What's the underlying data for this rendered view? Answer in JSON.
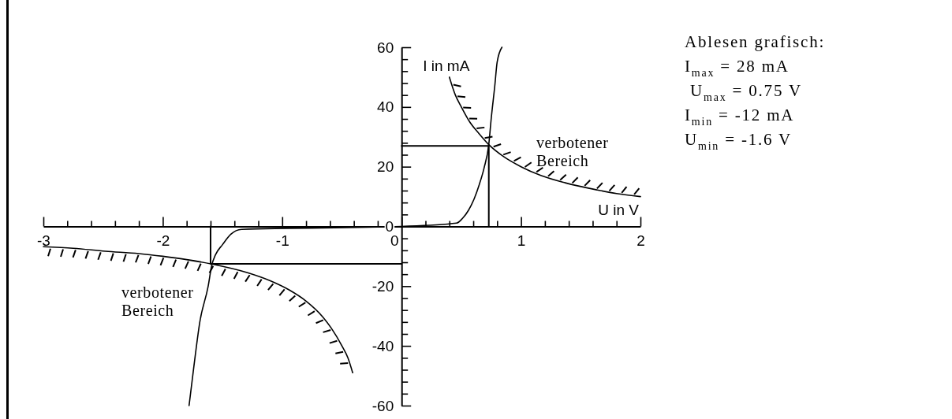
{
  "chart_data": {
    "type": "line",
    "xlabel": "U in V",
    "ylabel": "I in mA",
    "xlim": [
      -3,
      2
    ],
    "ylim": [
      -60,
      60
    ],
    "xticks": [
      -3,
      {
        "value": -2.8,
        "label": null
      },
      {
        "value": -2.6,
        "label": null
      },
      {
        "value": -2.4,
        "label": null
      },
      {
        "value": -2.2,
        "label": null
      },
      -2,
      {
        "value": -1.8,
        "label": null
      },
      {
        "value": -1.6,
        "label": null
      },
      {
        "value": -1.4,
        "label": null
      },
      {
        "value": -1.2,
        "label": null
      },
      -1,
      {
        "value": -0.8,
        "label": null
      },
      {
        "value": -0.6,
        "label": null
      },
      {
        "value": -0.4,
        "label": null
      },
      {
        "value": -0.2,
        "label": null
      },
      0,
      {
        "value": 0.2,
        "label": null
      },
      {
        "value": 0.4,
        "label": null
      },
      {
        "value": 0.6,
        "label": null
      },
      {
        "value": 0.8,
        "label": null
      },
      1,
      {
        "value": 1.2,
        "label": null
      },
      {
        "value": 1.4,
        "label": null
      },
      {
        "value": 1.6,
        "label": null
      },
      {
        "value": 1.8,
        "label": null
      },
      2
    ],
    "yticks": [
      -60,
      {
        "value": -56,
        "label": null
      },
      {
        "value": -52,
        "label": null
      },
      {
        "value": -48,
        "label": null
      },
      {
        "value": -44,
        "label": null
      },
      -40,
      {
        "value": -36,
        "label": null
      },
      {
        "value": -32,
        "label": null
      },
      {
        "value": -28,
        "label": null
      },
      {
        "value": -24,
        "label": null
      },
      -20,
      {
        "value": -16,
        "label": null
      },
      {
        "value": -12,
        "label": null
      },
      {
        "value": -8,
        "label": null
      },
      {
        "value": -4,
        "label": null
      },
      0,
      {
        "value": 4,
        "label": null
      },
      {
        "value": 8,
        "label": null
      },
      {
        "value": 12,
        "label": null
      },
      {
        "value": 16,
        "label": null
      },
      20,
      {
        "value": 24,
        "label": null
      },
      {
        "value": 28,
        "label": null
      },
      {
        "value": 32,
        "label": null
      },
      {
        "value": 36,
        "label": null
      },
      40,
      {
        "value": 44,
        "label": null
      },
      {
        "value": 48,
        "label": null
      },
      {
        "value": 52,
        "label": null
      },
      {
        "value": 56,
        "label": null
      },
      60
    ],
    "series": [
      {
        "color": "#000000",
        "x": [
          -1.78,
          -1.74,
          -1.69,
          -1.62,
          -1.59,
          -1.56,
          -1.5,
          -1.43,
          -1.34,
          0,
          0.46,
          0.51,
          0.56,
          0.61,
          0.65,
          0.69,
          0.73,
          0.75,
          0.78,
          0.8,
          0.84
        ],
        "values": [
          -60,
          -47,
          -32,
          -20,
          -13,
          -9.6,
          -6.1,
          -2.6,
          -1,
          0,
          1.1,
          2.7,
          5.4,
          9.5,
          14,
          19.5,
          27.5,
          36,
          47,
          55,
          60
        ]
      },
      {
        "color": "#000000",
        "x": [
          0.4,
          0.45,
          0.5,
          0.57,
          0.65,
          0.73,
          0.85,
          1,
          1.17,
          1.37,
          1.64,
          1.8,
          2
        ],
        "values": [
          50,
          44,
          40,
          35,
          31,
          27.4,
          23.5,
          20,
          17,
          14.6,
          12.2,
          11,
          10
        ]
      },
      {
        "color": "#000000",
        "x": [
          -3,
          -2.75,
          -2.48,
          -2.2,
          -2,
          -1.8,
          -1.59,
          -1.29,
          -1.1,
          -0.94,
          -0.8,
          -0.66,
          -0.59,
          -0.5,
          -0.45,
          -0.41
        ],
        "values": [
          -6.8,
          -7.3,
          -8.3,
          -9.1,
          -10,
          -11.1,
          -12.6,
          -15.5,
          -18.2,
          -21.3,
          -25,
          -30.3,
          -34,
          -40,
          -44,
          -49
        ]
      },
      {
        "color": "#000000",
        "x": [
          0,
          0.73,
          0.73
        ],
        "values": [
          27,
          27,
          0
        ]
      },
      {
        "color": "#000000",
        "x": [
          -1.6,
          -1.6,
          0
        ],
        "values": [
          0,
          -12.5,
          -12.5
        ]
      }
    ],
    "annotations": [
      "Ablesen grafisch:",
      "I$_{max}$ = 28 mA",
      " U$_{max}$ = 0.75 V",
      "I$_{min}$ = -12 mA",
      "U$_{min}$ = -1.6 V",
      "verbotener\nBereich",
      "verbotener\nBereich"
    ]
  }
}
